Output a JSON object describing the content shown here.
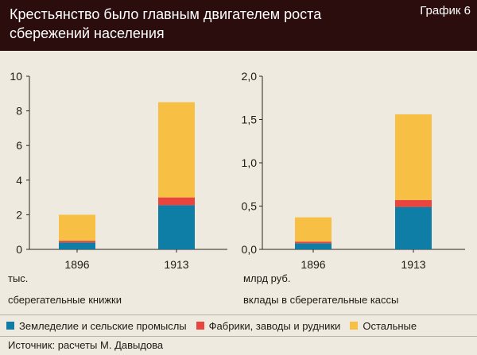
{
  "header": {
    "title": "Крестьянство было главным двигателем роста сбережений населения",
    "chart_number": "График 6"
  },
  "colors": {
    "header_bg": "#2a0d0c",
    "background": "#eeeadf",
    "agriculture": "#0e7ea6",
    "factories": "#e8453f",
    "other": "#f7bf44"
  },
  "legend": [
    {
      "label": "Земледелие и сельские промыслы",
      "color": "#0e7ea6"
    },
    {
      "label": "Фабрики, заводы и рудники",
      "color": "#e8453f"
    },
    {
      "label": "Остальные",
      "color": "#f7bf44"
    }
  ],
  "chart_data": [
    {
      "type": "bar",
      "stacked": true,
      "categories": [
        "1896",
        "1913"
      ],
      "series": [
        {
          "name": "Земледелие и сельские промыслы",
          "values": [
            0.4,
            2.55
          ]
        },
        {
          "name": "Фабрики, заводы и рудники",
          "values": [
            0.1,
            0.45
          ]
        },
        {
          "name": "Остальные",
          "values": [
            1.5,
            5.5
          ]
        }
      ],
      "ylim": [
        0,
        10
      ],
      "yticks": [
        "0",
        "2",
        "4",
        "6",
        "8",
        "10"
      ],
      "unit": "тыс.",
      "description": "сберегательные книжки"
    },
    {
      "type": "bar",
      "stacked": true,
      "categories": [
        "1896",
        "1913"
      ],
      "series": [
        {
          "name": "Земледелие и сельские промыслы",
          "values": [
            0.07,
            0.49
          ]
        },
        {
          "name": "Фабрики, заводы и рудники",
          "values": [
            0.02,
            0.08
          ]
        },
        {
          "name": "Остальные",
          "values": [
            0.28,
            0.99
          ]
        }
      ],
      "ylim": [
        0,
        2.0
      ],
      "yticks": [
        "0,0",
        "0,5",
        "1,0",
        "1,5",
        "2,0"
      ],
      "unit": "млрд руб.",
      "description": "вклады в сберегательные кассы"
    }
  ],
  "source": "Источник: расчеты М. Давыдова"
}
